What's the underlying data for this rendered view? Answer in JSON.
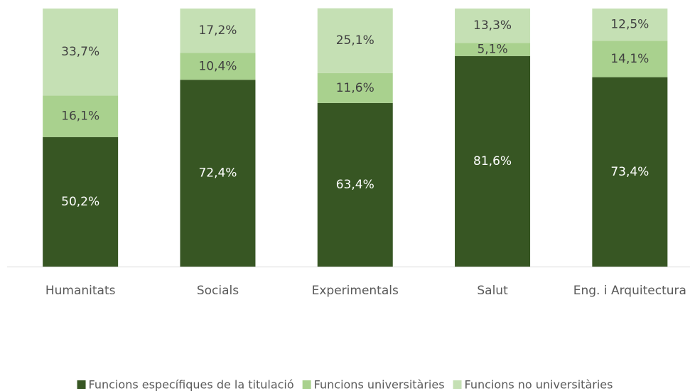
{
  "chart_data": {
    "type": "stacked_bar",
    "categories": [
      "Humanitats",
      "Socials",
      "Experimentals",
      "Salut",
      "Eng. i Arquitectura"
    ],
    "series": [
      {
        "name": "Funcions específiques de la titulació",
        "color": "#375623",
        "label_color": "#ffffff",
        "values": [
          50.2,
          72.4,
          63.4,
          81.6,
          73.4
        ],
        "value_labels": [
          "50,2%",
          "72,4%",
          "63,4%",
          "81,6%",
          "73,4%"
        ]
      },
      {
        "name": "Funcions universitàries",
        "color": "#a9d18e",
        "label_color": "#404040",
        "values": [
          16.1,
          10.4,
          11.6,
          5.1,
          14.1
        ],
        "value_labels": [
          "16,1%",
          "10,4%",
          "11,6%",
          "5,1%",
          "14,1%"
        ]
      },
      {
        "name": "Funcions no universitàries",
        "color": "#c5e0b4",
        "label_color": "#404040",
        "values": [
          33.7,
          17.2,
          25.1,
          13.3,
          12.5
        ],
        "value_labels": [
          "33,7%",
          "17,2%",
          "25,1%",
          "13,3%",
          "12,5%"
        ]
      }
    ],
    "ylim": [
      0,
      100
    ],
    "legend": "bottom"
  }
}
